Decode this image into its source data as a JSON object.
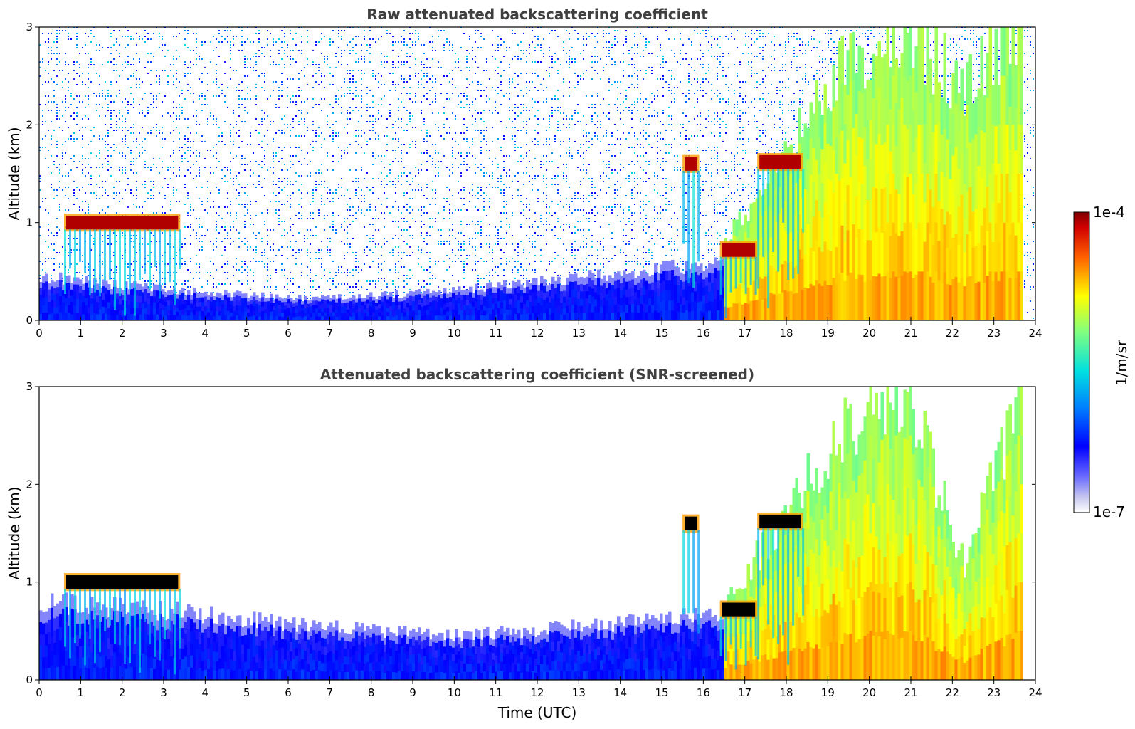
{
  "chart_data": [
    {
      "type": "heatmap",
      "title": "Raw attenuated backscattering coefficient",
      "xlabel": "",
      "ylabel": "Altitude (km)",
      "xlim": [
        0,
        24
      ],
      "ylim": [
        0,
        3
      ],
      "x_ticks": [
        "0",
        "1",
        "2",
        "3",
        "4",
        "5",
        "6",
        "7",
        "8",
        "9",
        "10",
        "11",
        "12",
        "13",
        "14",
        "15",
        "16",
        "17",
        "18",
        "19",
        "20",
        "21",
        "22",
        "23",
        "24"
      ],
      "y_ticks": [
        "0",
        "1",
        "2",
        "3"
      ],
      "screened": false,
      "features": [
        {
          "kind": "cloud",
          "t_start": 0.6,
          "t_end": 3.4,
          "alt_km": 1.0,
          "level": "max"
        },
        {
          "kind": "cloud",
          "t_start": 15.5,
          "t_end": 15.9,
          "alt_km": 1.6,
          "level": "max"
        },
        {
          "kind": "cloud",
          "t_start": 17.3,
          "t_end": 18.4,
          "alt_km": 1.62,
          "level": "max"
        },
        {
          "kind": "cloud",
          "t_start": 16.4,
          "t_end": 17.3,
          "alt_km": 0.72,
          "level": "max"
        },
        {
          "kind": "boundary_layer",
          "t_start": 0.0,
          "t_end": 16.5,
          "top_km": [
            0.45,
            0.3,
            0.22,
            0.3,
            0.45,
            0.6
          ],
          "level": "low"
        },
        {
          "kind": "aerosol_plumes",
          "t_start": 16.5,
          "t_end": 23.7,
          "top_km": [
            0.8,
            1.7,
            2.6,
            3.0,
            2.4,
            3.0
          ],
          "level": "high"
        }
      ]
    },
    {
      "type": "heatmap",
      "title": "Attenuated backscattering coefficient (SNR-screened)",
      "xlabel": "Time (UTC)",
      "ylabel": "Altitude (km)",
      "xlim": [
        0,
        24
      ],
      "ylim": [
        0,
        3
      ],
      "x_ticks": [
        "0",
        "1",
        "2",
        "3",
        "4",
        "5",
        "6",
        "7",
        "8",
        "9",
        "10",
        "11",
        "12",
        "13",
        "14",
        "15",
        "16",
        "17",
        "18",
        "19",
        "20",
        "21",
        "22",
        "23",
        "24"
      ],
      "y_ticks": [
        "0",
        "1",
        "2",
        "3"
      ],
      "screened": true,
      "features": [
        {
          "kind": "cloud",
          "t_start": 0.6,
          "t_end": 3.4,
          "alt_km": 1.0,
          "level": "saturated"
        },
        {
          "kind": "cloud",
          "t_start": 15.5,
          "t_end": 15.9,
          "alt_km": 1.6,
          "level": "saturated"
        },
        {
          "kind": "cloud",
          "t_start": 17.3,
          "t_end": 18.4,
          "alt_km": 1.62,
          "level": "saturated"
        },
        {
          "kind": "cloud",
          "t_start": 16.4,
          "t_end": 17.3,
          "alt_km": 0.72,
          "level": "saturated"
        },
        {
          "kind": "boundary_layer",
          "t_start": 0.0,
          "t_end": 16.5,
          "top_km": [
            0.8,
            0.7,
            0.55,
            0.45,
            0.55,
            0.7
          ],
          "level": "low"
        },
        {
          "kind": "aerosol_plumes",
          "t_start": 16.5,
          "t_end": 23.7,
          "top_km": [
            0.8,
            1.7,
            2.6,
            3.0,
            1.2,
            3.0
          ],
          "level": "high"
        }
      ]
    }
  ],
  "colorbar": {
    "label": "1/m/sr",
    "max_label": "1e-4",
    "min_label": "1e-7",
    "scale": "log",
    "range": [
      1e-07,
      0.0001
    ],
    "colormap": "jet"
  }
}
